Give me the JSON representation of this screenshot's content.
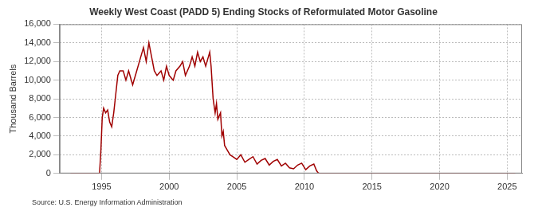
{
  "chart_data": {
    "type": "line",
    "title": "Weekly West Coast (PADD 5) Ending Stocks of Reformulated Motor Gasoline",
    "y_label": "Thousand Barrels",
    "annotations": [
      "Source: U.S. Energy Information Administration"
    ],
    "x": [
      1992.7,
      1993.5,
      1994.5,
      1994.85,
      1994.95,
      1995.05,
      1995.15,
      1995.3,
      1995.45,
      1995.6,
      1995.75,
      1995.9,
      1996.05,
      1996.2,
      1996.35,
      1996.6,
      1996.8,
      1997.0,
      1997.3,
      1997.6,
      1997.9,
      1998.1,
      1998.3,
      1998.5,
      1998.7,
      1998.9,
      1999.1,
      1999.4,
      1999.6,
      1999.8,
      2000.0,
      2000.3,
      2000.5,
      2000.8,
      2001.0,
      2001.2,
      2001.5,
      2001.7,
      2001.9,
      2002.1,
      2002.3,
      2002.5,
      2002.7,
      2002.9,
      2003.0,
      2003.1,
      2003.25,
      2003.4,
      2003.5,
      2003.6,
      2003.8,
      2003.9,
      2004.0,
      2004.1,
      2004.3,
      2004.5,
      2004.7,
      2005.0,
      2005.3,
      2005.6,
      2005.9,
      2006.2,
      2006.5,
      2006.8,
      2007.1,
      2007.4,
      2007.7,
      2008.0,
      2008.3,
      2008.6,
      2008.9,
      2009.2,
      2009.5,
      2009.8,
      2010.1,
      2010.4,
      2010.7,
      2010.9,
      2011.0,
      2011.1,
      2015.0,
      2020.0,
      2025.6
    ],
    "values": [
      0,
      0,
      0,
      0,
      2500,
      6000,
      7000,
      6500,
      6800,
      5500,
      5000,
      6500,
      8500,
      10500,
      11000,
      11000,
      10000,
      11000,
      9500,
      11000,
      12500,
      13500,
      12000,
      14000,
      12500,
      11000,
      10500,
      11000,
      10000,
      11500,
      10500,
      10000,
      11000,
      11500,
      12000,
      10500,
      11500,
      12500,
      11500,
      13000,
      12000,
      12500,
      11500,
      12500,
      13000,
      11500,
      8000,
      6500,
      7500,
      5800,
      6500,
      4000,
      4500,
      3000,
      2500,
      2000,
      1800,
      1500,
      2000,
      1200,
      1500,
      1800,
      1000,
      1400,
      1600,
      900,
      1300,
      1500,
      800,
      1100,
      600,
      500,
      900,
      1100,
      400,
      800,
      1000,
      300,
      100,
      0,
      0,
      0,
      0
    ],
    "color": "#a00000",
    "xlim": [
      1991.9,
      2026.1
    ],
    "xticks": [
      1995,
      2000,
      2005,
      2010,
      2015,
      2020,
      2025
    ],
    "ylim": [
      0,
      16000
    ],
    "yticks": [
      0,
      {
        "value": 2000,
        "label": "2,000"
      },
      {
        "value": 4000,
        "label": "4,000"
      },
      {
        "value": 6000,
        "label": "6,000"
      },
      {
        "value": 8000,
        "label": "8,000"
      },
      {
        "value": 10000,
        "label": "10,000"
      },
      {
        "value": 12000,
        "label": "12,000"
      },
      {
        "value": 14000,
        "label": "14,000"
      },
      {
        "value": 16000,
        "label": "16,000"
      }
    ],
    "grid": true
  }
}
